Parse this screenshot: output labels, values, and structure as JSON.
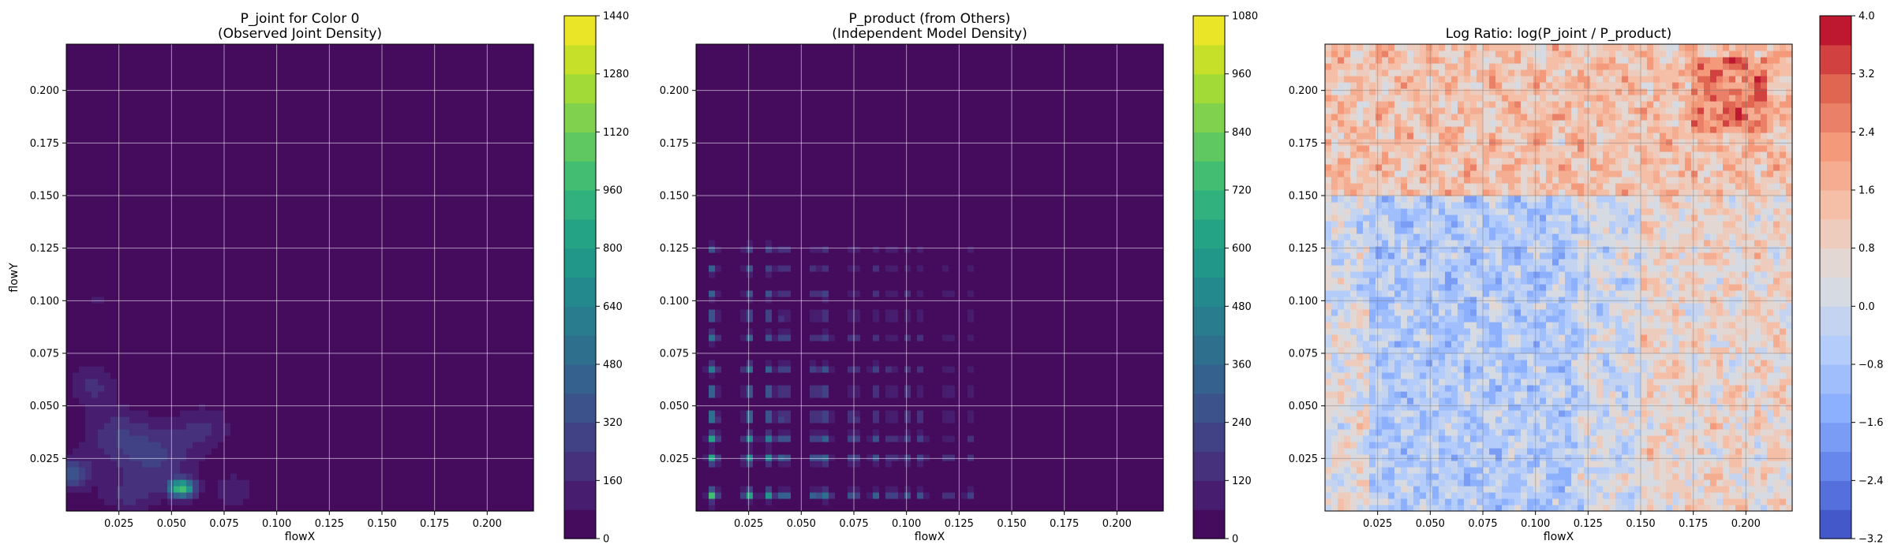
{
  "chart_data": [
    {
      "type": "heatmap",
      "title_lines": [
        "P_joint for Color 0",
        "(Observed Joint Density)"
      ],
      "xlabel": "flowX",
      "ylabel": "flowY",
      "xlim": [
        0.0,
        0.222
      ],
      "ylim": [
        0.0,
        0.222
      ],
      "xticks": [
        0.025,
        0.05,
        0.075,
        0.1,
        0.125,
        0.15,
        0.175,
        0.2
      ],
      "xtick_labels": [
        "0.025",
        "0.050",
        "0.075",
        "0.100",
        "0.125",
        "0.150",
        "0.175",
        "0.200"
      ],
      "yticks": [
        0.025,
        0.05,
        0.075,
        0.1,
        0.125,
        0.15,
        0.175,
        0.2
      ],
      "ytick_labels": [
        "0.025",
        "0.050",
        "0.075",
        "0.100",
        "0.125",
        "0.150",
        "0.175",
        "0.200"
      ],
      "grid": true,
      "colormap": "viridis",
      "colorbar": {
        "min": 0,
        "max": 1440,
        "levels": 18,
        "ticks": [
          0,
          160,
          320,
          480,
          640,
          800,
          960,
          1120,
          1280,
          1440
        ],
        "tick_labels": [
          "0",
          "160",
          "320",
          "480",
          "640",
          "800",
          "960",
          "1120",
          "1280",
          "1440"
        ]
      },
      "features": {
        "background": 0,
        "blobs": [
          {
            "x": 0.055,
            "y": 0.011,
            "peak": 1000,
            "sx": 0.004,
            "sy": 0.003
          },
          {
            "x": 0.003,
            "y": 0.018,
            "peak": 400,
            "sx": 0.006,
            "sy": 0.005
          },
          {
            "x": 0.025,
            "y": 0.035,
            "peak": 220,
            "sx": 0.012,
            "sy": 0.01
          },
          {
            "x": 0.045,
            "y": 0.025,
            "peak": 220,
            "sx": 0.012,
            "sy": 0.01
          },
          {
            "x": 0.012,
            "y": 0.06,
            "peak": 180,
            "sx": 0.008,
            "sy": 0.007
          },
          {
            "x": 0.065,
            "y": 0.04,
            "peak": 160,
            "sx": 0.01,
            "sy": 0.008
          },
          {
            "x": 0.08,
            "y": 0.01,
            "peak": 140,
            "sx": 0.008,
            "sy": 0.006
          },
          {
            "x": 0.03,
            "y": 0.008,
            "peak": 180,
            "sx": 0.01,
            "sy": 0.006
          },
          {
            "x": 0.015,
            "y": 0.1,
            "peak": 90,
            "sx": 0.004,
            "sy": 0.004
          },
          {
            "x": 0.117,
            "y": 0.096,
            "peak": 90,
            "sx": 0.002,
            "sy": 0.002
          }
        ]
      }
    },
    {
      "type": "heatmap",
      "title_lines": [
        "P_product (from Others)",
        "(Independent Model Density)"
      ],
      "xlabel": "flowX",
      "ylabel": "",
      "xlim": [
        0.0,
        0.222
      ],
      "ylim": [
        0.0,
        0.222
      ],
      "xticks": [
        0.025,
        0.05,
        0.075,
        0.1,
        0.125,
        0.15,
        0.175,
        0.2
      ],
      "xtick_labels": [
        "0.025",
        "0.050",
        "0.075",
        "0.100",
        "0.125",
        "0.150",
        "0.175",
        "0.200"
      ],
      "yticks": [
        0.025,
        0.05,
        0.075,
        0.1,
        0.125,
        0.15,
        0.175,
        0.2
      ],
      "ytick_labels": [
        "0.025",
        "0.050",
        "0.075",
        "0.100",
        "0.125",
        "0.150",
        "0.175",
        "0.200"
      ],
      "grid": true,
      "colormap": "viridis",
      "colorbar": {
        "min": 0,
        "max": 1080,
        "levels": 18,
        "ticks": [
          0,
          120,
          240,
          360,
          480,
          600,
          720,
          840,
          960,
          1080
        ],
        "tick_labels": [
          "0",
          "120",
          "240",
          "360",
          "480",
          "600",
          "720",
          "840",
          "960",
          "1080"
        ]
      },
      "features": {
        "background": 0,
        "lines_x": [
          0.008,
          0.025,
          0.035,
          0.042,
          0.057,
          0.062,
          0.075,
          0.085,
          0.093,
          0.1,
          0.107,
          0.12,
          0.13
        ],
        "lines_y": [
          0.008,
          0.025,
          0.035,
          0.045,
          0.057,
          0.068,
          0.083,
          0.093,
          0.103,
          0.115,
          0.125
        ],
        "peak": 700
      }
    },
    {
      "type": "heatmap",
      "title_lines": [
        "Log Ratio: log(P_joint / P_product)"
      ],
      "xlabel": "flowX",
      "ylabel": "",
      "xlim": [
        0.0,
        0.222
      ],
      "ylim": [
        0.0,
        0.222
      ],
      "xticks": [
        0.025,
        0.05,
        0.075,
        0.1,
        0.125,
        0.15,
        0.175,
        0.2
      ],
      "xtick_labels": [
        "0.025",
        "0.050",
        "0.075",
        "0.100",
        "0.125",
        "0.150",
        "0.175",
        "0.200"
      ],
      "yticks": [
        0.025,
        0.05,
        0.075,
        0.1,
        0.125,
        0.15,
        0.175,
        0.2
      ],
      "ytick_labels": [
        "0.025",
        "0.050",
        "0.075",
        "0.100",
        "0.125",
        "0.150",
        "0.175",
        "0.200"
      ],
      "grid": true,
      "colormap": "coolwarm",
      "colorbar": {
        "min": -3.2,
        "max": 4.0,
        "levels": 18,
        "ticks": [
          -3.2,
          -2.4,
          -1.6,
          -0.8,
          0.0,
          0.8,
          1.6,
          2.4,
          3.2,
          4.0
        ],
        "tick_labels": [
          "−3.2",
          "−2.4",
          "−1.6",
          "−0.8",
          "0.0",
          "0.8",
          "1.6",
          "2.4",
          "3.2",
          "4.0"
        ]
      },
      "features": {
        "regions": [
          {
            "x": [
              0.0,
              0.222
            ],
            "y": [
              0.15,
              0.222
            ],
            "value": 1.3
          },
          {
            "x": [
              0.15,
              0.222
            ],
            "y": [
              0.0,
              0.15
            ],
            "value": 0.7
          },
          {
            "x": [
              0.175,
              0.21
            ],
            "y": [
              0.18,
              0.215
            ],
            "value": 2.6
          },
          {
            "x": [
              0.02,
              0.12
            ],
            "y": [
              0.0,
              0.15
            ],
            "value": -0.6
          },
          {
            "x": [
              0.0,
              0.02
            ],
            "y": [
              0.0,
              0.1
            ],
            "value": 0.4
          }
        ]
      }
    }
  ]
}
